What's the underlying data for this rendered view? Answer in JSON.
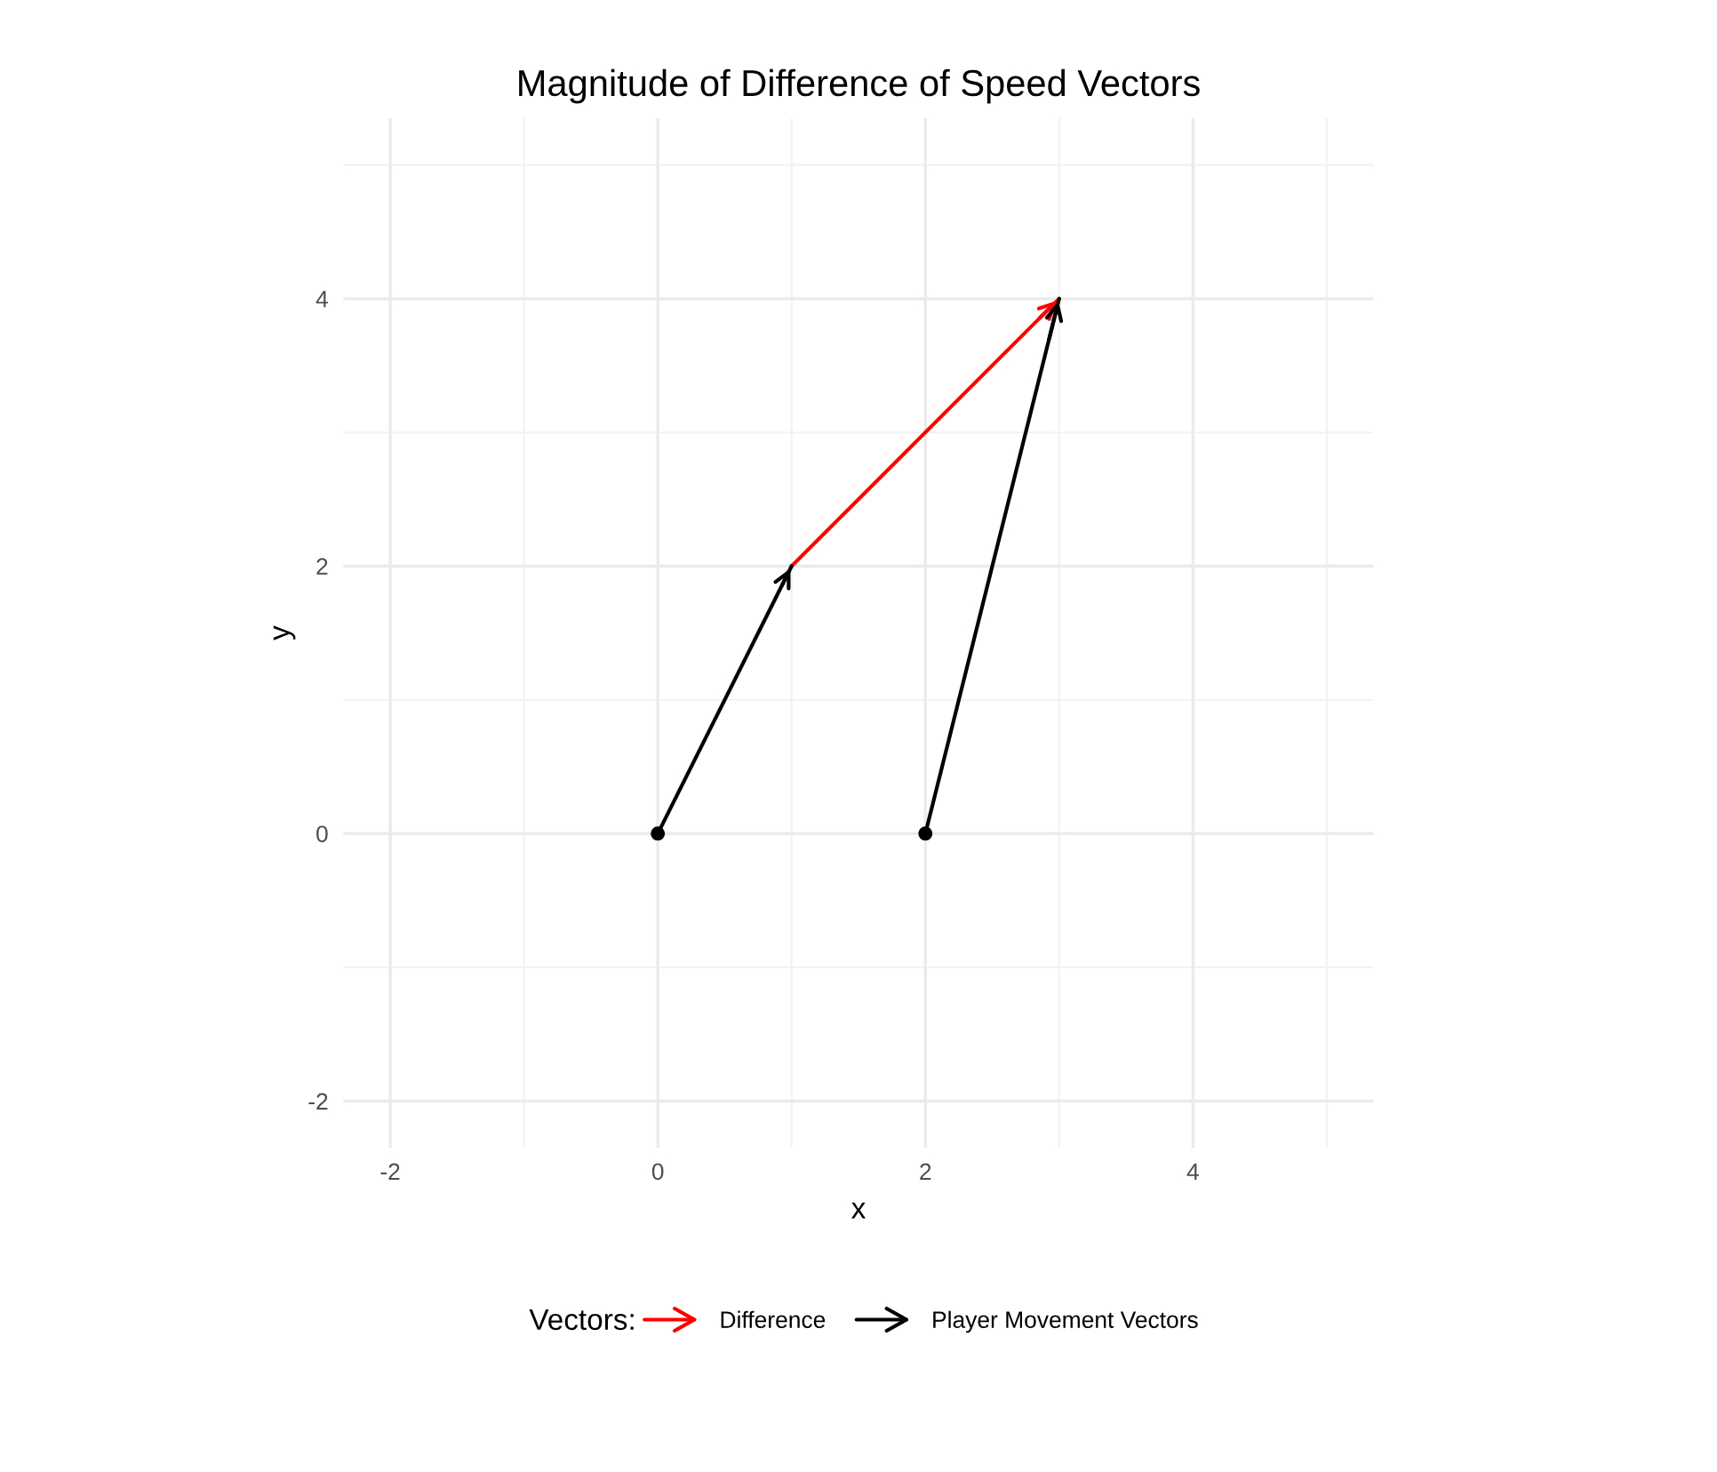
{
  "chart_data": {
    "type": "line",
    "title": "Magnitude of Difference of Speed Vectors",
    "xlabel": "x",
    "ylabel": "y",
    "legend_title": "Vectors:",
    "series": [
      {
        "name": "Difference",
        "color": "#ff0000",
        "x": [
          1,
          3
        ],
        "values": [
          2,
          4
        ]
      },
      {
        "name": "Player Movement Vectors",
        "color": "#000000",
        "x": [
          0,
          1,
          null,
          2,
          3
        ],
        "values": [
          0,
          2,
          null,
          0,
          4
        ]
      },
      {
        "type": "scatter",
        "color": "#000000",
        "x": [
          0,
          2
        ],
        "values": [
          0,
          0
        ]
      }
    ],
    "xlim": [
      -2.35,
      5.35
    ],
    "ylim": [
      -2.35,
      5.35
    ],
    "xticks": [
      {
        "value": -2,
        "label": "-2"
      },
      0,
      2,
      4
    ],
    "yticks": [
      {
        "value": -2,
        "label": "-2"
      },
      0,
      2,
      4
    ],
    "grid": true,
    "legend": "bottom"
  }
}
